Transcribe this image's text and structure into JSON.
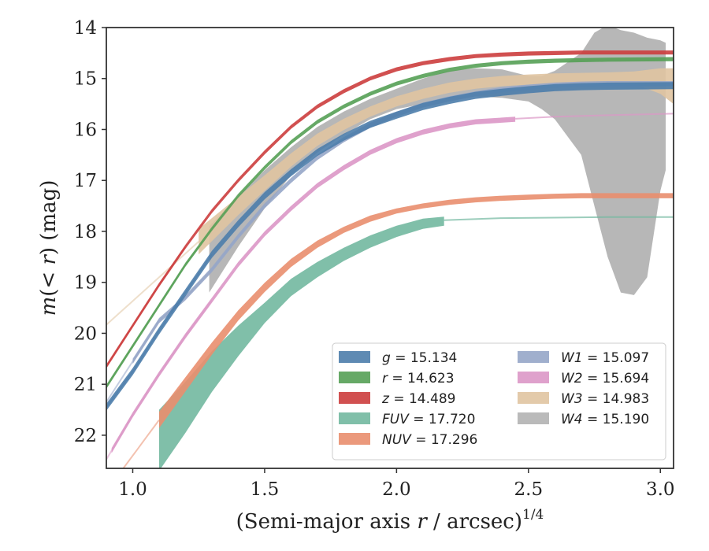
{
  "chart_data": {
    "type": "line",
    "xlabel": "(Semi-major axis r / arcsec)^1/4",
    "xlabel_parts": {
      "prefix": "(Semi-major axis ",
      "var": "r",
      "suffix": " / arcsec)",
      "exp": "1/4"
    },
    "ylabel": "m(< r) (mag)",
    "ylabel_parts": {
      "m": "m",
      "open": "(",
      "lt": "< ",
      "r": "r",
      "close": ")",
      "unit": " (mag)"
    },
    "xlim": [
      0.9,
      3.05
    ],
    "ylim": [
      22.65,
      14.0
    ],
    "y_inverted": true,
    "xticks": [
      {
        "value": 1.0,
        "label": "1.0"
      },
      {
        "value": 1.5,
        "label": "1.5"
      },
      {
        "value": 2.0,
        "label": "2.0"
      },
      {
        "value": 2.5,
        "label": "2.5"
      },
      {
        "value": 3.0,
        "label": "3.0"
      }
    ],
    "yticks": [
      {
        "value": 14,
        "label": "14"
      },
      {
        "value": 15,
        "label": "15"
      },
      {
        "value": 16,
        "label": "16"
      },
      {
        "value": 17,
        "label": "17"
      },
      {
        "value": 18,
        "label": "18"
      },
      {
        "value": 19,
        "label": "19"
      },
      {
        "value": 20,
        "label": "20"
      },
      {
        "value": 21,
        "label": "21"
      },
      {
        "value": 22,
        "label": "22"
      }
    ],
    "legend_position": "lower-right",
    "legend_columns": 2,
    "series": [
      {
        "band": "g",
        "value": "15.134",
        "color": "#4c7dab",
        "faint_x": [
          0.9,
          1.3
        ],
        "band_x": [
          0.9,
          1.0,
          1.1,
          1.2,
          1.3,
          1.4,
          1.5,
          1.6,
          1.7,
          1.8,
          1.9,
          2.0,
          2.1,
          2.2,
          2.3,
          2.4,
          2.5,
          2.6,
          2.7,
          2.8,
          3.05
        ],
        "band_y": [
          21.45,
          20.75,
          19.95,
          19.2,
          18.45,
          17.85,
          17.3,
          16.85,
          16.45,
          16.15,
          15.9,
          15.72,
          15.55,
          15.43,
          15.33,
          15.27,
          15.22,
          15.18,
          15.16,
          15.15,
          15.14
        ],
        "band_half": 0.07
      },
      {
        "band": "r",
        "value": "14.623",
        "color": "#55a055",
        "faint_x": [
          0.9,
          1.25
        ],
        "band_x": [
          0.9,
          1.0,
          1.1,
          1.2,
          1.3,
          1.4,
          1.5,
          1.6,
          1.7,
          1.8,
          1.9,
          2.0,
          2.1,
          2.2,
          2.3,
          2.4,
          2.5,
          2.6,
          2.7,
          2.8,
          3.05
        ],
        "band_y": [
          21.05,
          20.25,
          19.45,
          18.65,
          17.95,
          17.3,
          16.75,
          16.25,
          15.85,
          15.55,
          15.3,
          15.1,
          14.95,
          14.83,
          14.75,
          14.7,
          14.67,
          14.65,
          14.64,
          14.63,
          14.62
        ],
        "band_half": 0.04
      },
      {
        "band": "z",
        "value": "14.489",
        "color": "#cc3d3d",
        "faint_x": [
          0.9,
          1.2
        ],
        "band_x": [
          0.9,
          1.0,
          1.1,
          1.2,
          1.3,
          1.4,
          1.5,
          1.6,
          1.7,
          1.8,
          1.9,
          2.0,
          2.1,
          2.2,
          2.3,
          2.4,
          2.5,
          2.6,
          2.7,
          2.8,
          3.05
        ],
        "band_y": [
          20.65,
          19.85,
          19.05,
          18.3,
          17.6,
          17.0,
          16.45,
          15.95,
          15.55,
          15.25,
          15.0,
          14.82,
          14.7,
          14.62,
          14.56,
          14.53,
          14.51,
          14.5,
          14.49,
          14.49,
          14.49
        ],
        "band_half": 0.04
      },
      {
        "band": "FUV",
        "value": "17.720",
        "color": "#72b8a0",
        "faint_x": [
          2.18,
          3.05
        ],
        "band_x": [
          1.1,
          1.2,
          1.3,
          1.4,
          1.5,
          1.6,
          1.7,
          1.8,
          1.9,
          2.0,
          2.1,
          2.18
        ],
        "band_y": [
          22.1,
          21.45,
          20.75,
          20.15,
          19.6,
          19.1,
          18.75,
          18.45,
          18.2,
          18.0,
          17.85,
          17.8
        ],
        "band_half_list": [
          0.6,
          0.5,
          0.4,
          0.3,
          0.2,
          0.17,
          0.15,
          0.13,
          0.12,
          0.11,
          0.1,
          0.09
        ],
        "line_x": [
          2.18,
          2.4,
          2.6,
          2.8,
          3.05
        ],
        "line_y": [
          17.78,
          17.74,
          17.73,
          17.72,
          17.72
        ]
      },
      {
        "band": "NUV",
        "value": "17.296",
        "color": "#e98e6e",
        "faint_x": [
          0.9,
          1.1
        ],
        "band_x": [
          1.1,
          1.2,
          1.3,
          1.4,
          1.5,
          1.6,
          1.7,
          1.8,
          1.9,
          2.0,
          2.1,
          2.2,
          2.3,
          2.4,
          2.5,
          2.6,
          2.7,
          2.8,
          2.9,
          3.05
        ],
        "band_y": [
          21.7,
          21.0,
          20.3,
          19.65,
          19.1,
          18.62,
          18.25,
          17.97,
          17.75,
          17.6,
          17.5,
          17.43,
          17.38,
          17.35,
          17.33,
          17.31,
          17.3,
          17.3,
          17.3,
          17.3
        ],
        "band_half_list": [
          0.16,
          0.14,
          0.12,
          0.1,
          0.09,
          0.08,
          0.07,
          0.06,
          0.06,
          0.05,
          0.05,
          0.05,
          0.05,
          0.05,
          0.05,
          0.05,
          0.05,
          0.05,
          0.05,
          0.05
        ]
      },
      {
        "band": "W1",
        "value": "15.097",
        "color": "#96a6c8",
        "faint_x": [
          0.9,
          1.5
        ],
        "band_x": [
          1.0,
          1.1,
          1.2,
          1.3,
          1.4,
          1.5,
          1.6,
          1.7,
          1.8,
          1.9,
          2.0,
          2.1,
          2.2,
          2.3,
          2.4,
          2.5,
          2.6,
          2.7,
          2.8,
          3.05
        ],
        "band_y": [
          20.55,
          19.75,
          19.3,
          18.75,
          18.1,
          17.5,
          17.0,
          16.55,
          16.2,
          15.92,
          15.7,
          15.52,
          15.4,
          15.3,
          15.22,
          15.17,
          15.13,
          15.11,
          15.1,
          15.1
        ],
        "band_half": 0.05
      },
      {
        "band": "W2",
        "value": "15.694",
        "color": "#dc97c6",
        "faint_x": [
          0.9,
          1.3
        ],
        "band_x": [
          0.92,
          1.0,
          1.1,
          1.2,
          1.3,
          1.4,
          1.5,
          1.6,
          1.7,
          1.8,
          1.9,
          2.0,
          2.1,
          2.2,
          2.3,
          2.45
        ],
        "band_y": [
          22.3,
          21.6,
          20.8,
          20.05,
          19.35,
          18.65,
          18.05,
          17.55,
          17.1,
          16.75,
          16.45,
          16.22,
          16.05,
          15.93,
          15.85,
          15.8
        ],
        "band_half": 0.05,
        "line_x": [
          2.45,
          2.6,
          2.8,
          3.05
        ],
        "line_y": [
          15.79,
          15.75,
          15.72,
          15.69
        ]
      },
      {
        "band": "W3",
        "value": "14.983",
        "color": "#e0c4a1",
        "faint_x": [
          0.9,
          1.25
        ],
        "band_x": [
          1.25,
          1.4,
          1.5,
          1.6,
          1.7,
          1.8,
          1.9,
          2.0,
          2.1,
          2.2,
          2.3,
          2.4,
          2.5,
          2.6,
          2.7,
          2.8,
          2.9,
          3.0,
          3.05
        ],
        "band_y": [
          18.2,
          17.5,
          17.05,
          16.6,
          16.2,
          15.9,
          15.65,
          15.45,
          15.3,
          15.18,
          15.1,
          15.05,
          15.02,
          15.0,
          14.99,
          14.98,
          14.98,
          15.05,
          15.15
        ],
        "band_half_list": [
          0.25,
          0.18,
          0.15,
          0.13,
          0.12,
          0.11,
          0.1,
          0.1,
          0.1,
          0.1,
          0.1,
          0.1,
          0.1,
          0.1,
          0.1,
          0.1,
          0.12,
          0.25,
          0.35
        ]
      },
      {
        "band": "W4",
        "value": "15.190",
        "color": "#b3b3b3",
        "band_x": [
          1.29,
          1.4,
          1.5,
          1.6,
          1.7,
          1.8,
          1.9,
          2.0,
          2.1,
          2.2,
          2.3,
          2.4,
          2.5,
          2.55,
          2.6,
          2.7,
          2.75,
          2.8,
          2.85,
          2.9,
          2.95,
          3.0,
          3.02
        ],
        "band_top": [
          17.9,
          17.3,
          16.8,
          16.35,
          15.95,
          15.65,
          15.4,
          15.2,
          15.0,
          14.85,
          14.8,
          14.82,
          14.95,
          14.95,
          14.85,
          14.5,
          14.1,
          13.95,
          14.05,
          14.1,
          14.2,
          14.25,
          14.3
        ],
        "band_bottom": [
          19.2,
          18.3,
          17.55,
          16.9,
          16.45,
          16.1,
          15.8,
          15.6,
          15.5,
          15.4,
          15.35,
          15.38,
          15.45,
          15.6,
          15.8,
          16.5,
          17.5,
          18.5,
          19.2,
          19.25,
          18.9,
          17.2,
          16.8
        ]
      }
    ]
  }
}
